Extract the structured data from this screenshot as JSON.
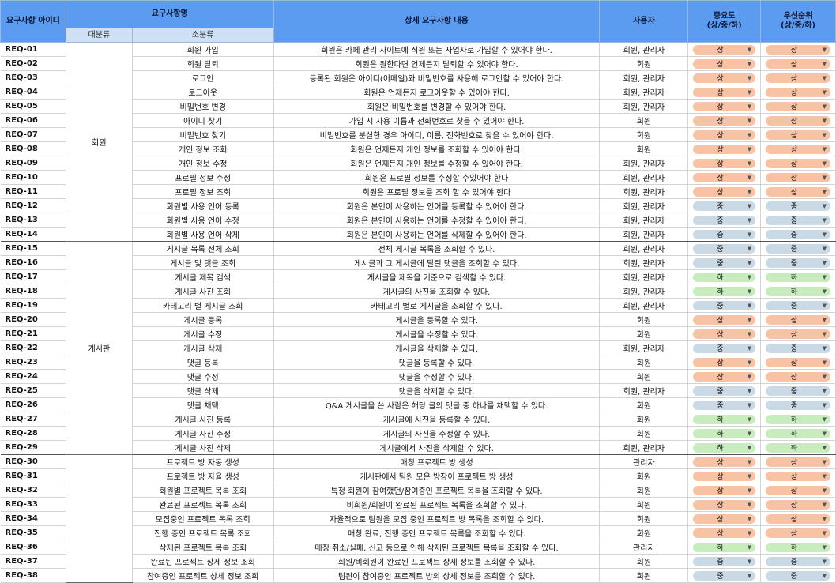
{
  "headers": {
    "id": "요구사항 아이디",
    "name": "요구사항명",
    "major": "대분류",
    "minor": "소분류",
    "detail": "상세 요구사항 내용",
    "user": "사용자",
    "importance": "중요도\n(상/중/하)",
    "priority": "우선순위\n(상/중/하)"
  },
  "groups": [
    {
      "label": "회원",
      "start": 0,
      "count": 14
    },
    {
      "label": "게시판",
      "start": 14,
      "count": 15
    },
    {
      "label": "",
      "start": 29,
      "count": 9
    }
  ],
  "rows": [
    {
      "id": "REQ-01",
      "minor": "회원 가입",
      "detail": "회원은 카페 관리 사이트에 직원 또는 사업자로 가입할 수 있어야 한다.",
      "user": "회원, 관리자",
      "importance": "상",
      "priority": "상"
    },
    {
      "id": "REQ-02",
      "minor": "회원 탈퇴",
      "detail": "회원은 원한다면 언제든지 탈퇴할 수 있어야 한다.",
      "user": "회원",
      "importance": "상",
      "priority": "상"
    },
    {
      "id": "REQ-03",
      "minor": "로그인",
      "detail": "등록된 회원은 아이디(이메일)와 비밀번호를 사용해 로그인할 수 있어야 한다.",
      "user": "회원, 관리자",
      "importance": "상",
      "priority": "상"
    },
    {
      "id": "REQ-04",
      "minor": "로그아웃",
      "detail": "회원은 언제든지 로그아웃할 수 있어야 한다.",
      "user": "회원, 관리자",
      "importance": "상",
      "priority": "상"
    },
    {
      "id": "REQ-05",
      "minor": "비밀번호 변경",
      "detail": "회원은 비밀번호를 변경할 수 있어야 한다.",
      "user": "회원, 관리자",
      "importance": "상",
      "priority": "상"
    },
    {
      "id": "REQ-06",
      "minor": "아이디 찾기",
      "detail": "가입 시 사용 이름과 전화번호로 찾을 수 있어야 한다.",
      "user": "회원",
      "importance": "상",
      "priority": "상"
    },
    {
      "id": "REQ-07",
      "minor": "비밀번호 찾기",
      "detail": "비밀번호를 분실한 경우 아이디, 이름, 전화번호로 찾을 수 있어야 한다.",
      "user": "회원",
      "importance": "상",
      "priority": "상"
    },
    {
      "id": "REQ-08",
      "minor": "개인 정보 조회",
      "detail": "회원은 언제든지 개인 정보를 조회할 수 있어야 한다.",
      "user": "회원",
      "importance": "상",
      "priority": "상"
    },
    {
      "id": "REQ-09",
      "minor": "개인 정보 수정",
      "detail": "회원은 언제든지 개인 정보를 수정할 수 있어야 한다.",
      "user": "회원, 관리자",
      "importance": "상",
      "priority": "상"
    },
    {
      "id": "REQ-10",
      "minor": "프로필 정보 수정",
      "detail": "회원은 프로필 정보를 수정할 수있어야 한다",
      "user": "회원, 관리자",
      "importance": "상",
      "priority": "상"
    },
    {
      "id": "REQ-11",
      "minor": "프로필 정보 조회",
      "detail": "회원은 프로필 정보를 조회 할 수 있어야 한다",
      "user": "회원, 관리자",
      "importance": "상",
      "priority": "상"
    },
    {
      "id": "REQ-12",
      "minor": "회원별 사용 언어 등록",
      "detail": "회원은 본인이 사용하는 언어를 등록할 수 있어야 한다.",
      "user": "회원, 관리자",
      "importance": "중",
      "priority": "중"
    },
    {
      "id": "REQ-13",
      "minor": "회원별 사용 언어 수정",
      "detail": "회원은 본인이 사용하는 언어를 수정할 수 있어야 한다.",
      "user": "회원, 관리자",
      "importance": "중",
      "priority": "중"
    },
    {
      "id": "REQ-14",
      "minor": "회원별 사용 언어 삭제",
      "detail": "회원은 본인이 사용하는 언어를 삭제할 수 있어야 한다.",
      "user": "회원, 관리자",
      "importance": "중",
      "priority": "중"
    },
    {
      "id": "REQ-15",
      "minor": "게시글 목록 전체 조회",
      "detail": "전체 게시글 목록을 조회할 수 있다.",
      "user": "회원, 관리자",
      "importance": "중",
      "priority": "중"
    },
    {
      "id": "REQ-16",
      "minor": "게시글 및 댓글 조회",
      "detail": "게시글과 그 게시글에 달린 댓글을 조회할 수 있다.",
      "user": "회원, 관리자",
      "importance": "중",
      "priority": "중"
    },
    {
      "id": "REQ-17",
      "minor": "게시글 제목 검색",
      "detail": "게시글을 제목을 기준으로 검색할 수 있다.",
      "user": "회원, 관리자",
      "importance": "하",
      "priority": "하"
    },
    {
      "id": "REQ-18",
      "minor": "게시글 사진 조회",
      "detail": "게시글의 사진을 조회할 수 있다.",
      "user": "회원, 관리자",
      "importance": "하",
      "priority": "하"
    },
    {
      "id": "REQ-19",
      "minor": "카테고리 별 게시글 조회",
      "detail": "카테고리 별로 게시글을 조회할 수 있다.",
      "user": "회원, 관리자",
      "importance": "중",
      "priority": "중"
    },
    {
      "id": "REQ-20",
      "minor": "게시글 등록",
      "detail": "게시글을 등록할 수 있다.",
      "user": "회원",
      "importance": "상",
      "priority": "상"
    },
    {
      "id": "REQ-21",
      "minor": "게시글 수정",
      "detail": "게시글을 수정할 수 있다.",
      "user": "회원",
      "importance": "상",
      "priority": "상"
    },
    {
      "id": "REQ-22",
      "minor": "게시글 삭제",
      "detail": "게시글을 삭제할 수 있다.",
      "user": "회원, 관리자",
      "importance": "중",
      "priority": "중"
    },
    {
      "id": "REQ-23",
      "minor": "댓글 등록",
      "detail": "댓글을 등록할 수 있다.",
      "user": "회원",
      "importance": "상",
      "priority": "상"
    },
    {
      "id": "REQ-24",
      "minor": "댓글 수정",
      "detail": "댓글을 수정할 수 있다.",
      "user": "회원",
      "importance": "상",
      "priority": "상"
    },
    {
      "id": "REQ-25",
      "minor": "댓글 삭제",
      "detail": "댓글을 삭제할 수 있다.",
      "user": "회원, 관리자",
      "importance": "중",
      "priority": "중"
    },
    {
      "id": "REQ-26",
      "minor": "댓글 채택",
      "detail": "Q&A 게시글을 쓴 사람은 해당 글의 댓글 중 하나를 채택할 수 있다.",
      "user": "회원",
      "importance": "중",
      "priority": "중"
    },
    {
      "id": "REQ-27",
      "minor": "게시글 사진 등록",
      "detail": "게시글에 사진을 등록할 수 있다.",
      "user": "회원",
      "importance": "하",
      "priority": "하"
    },
    {
      "id": "REQ-28",
      "minor": "게시글 사진 수정",
      "detail": "게시글의 사진을 수정할 수 있다.",
      "user": "회원",
      "importance": "하",
      "priority": "하"
    },
    {
      "id": "REQ-29",
      "minor": "게시글 사진 삭제",
      "detail": "게시글에서 사진을 삭제할 수 있다.",
      "user": "회원, 관리자",
      "importance": "하",
      "priority": "하"
    },
    {
      "id": "REQ-30",
      "minor": "프로젝트 방 자동 생성",
      "detail": "매칭 프로젝트 방 생성",
      "user": "관리자",
      "importance": "상",
      "priority": "상"
    },
    {
      "id": "REQ-31",
      "minor": "프로젝트 방 자율 생성",
      "detail": "게시판에서 팀원 모은 방장이 프로젝트 방 생성",
      "user": "회원",
      "importance": "상",
      "priority": "상"
    },
    {
      "id": "REQ-32",
      "minor": "회원별 프로젝트 목록 조회",
      "detail": "특정 회원이 참여했던/참여중인 프로젝트 목록을 조회할 수 있다.",
      "user": "회원",
      "importance": "상",
      "priority": "상"
    },
    {
      "id": "REQ-33",
      "minor": "완료된 프로젝트 목록 조회",
      "detail": "비회원/회원이 완료된 프로젝트 목록을 조회할 수 있다.",
      "user": "회원",
      "importance": "상",
      "priority": "상"
    },
    {
      "id": "REQ-34",
      "minor": "모집중인 프로젝트 목록 조회",
      "detail": "자율적으로 팀원을 모집 중인 프로젝트 방 목록을 조회할 수 있다.",
      "user": "회원",
      "importance": "상",
      "priority": "상"
    },
    {
      "id": "REQ-35",
      "minor": "진행 중인 프로젝트 목록 조회",
      "detail": "매칭 완료, 진행 중인 프로젝트 목록을 조회할 수 있다.",
      "user": "회원",
      "importance": "상",
      "priority": "상"
    },
    {
      "id": "REQ-36",
      "minor": "삭제된 프로젝트 목록 조회",
      "detail": "매칭 취소/실패, 신고 등으로 인해 삭제된 프로젝트 목록을 조회할 수 있다.",
      "user": "관리자",
      "importance": "하",
      "priority": "하"
    },
    {
      "id": "REQ-37",
      "minor": "완료된 프로젝트 상세 정보 조회",
      "detail": "회원/비회원이 완료된 프로젝트 상세 정보를 조회할 수 있다.",
      "user": "회원",
      "importance": "중",
      "priority": "중"
    },
    {
      "id": "REQ-38",
      "minor": "참여중인 프로젝트 상세 정보 조회",
      "detail": "팀원이 참여중인 프로젝트 방의 상세 정보를 조회할 수 있다.",
      "user": "회원",
      "importance": "중",
      "priority": "중"
    }
  ],
  "colors": {
    "header_bg": "#5b9bf0",
    "subheader_bg": "#cfe0f5",
    "level_high": "#f8c2a5",
    "level_mid": "#c9d9e6",
    "level_low": "#c8ecbe"
  },
  "icons": {
    "dropdown": "triangle-down-icon"
  }
}
